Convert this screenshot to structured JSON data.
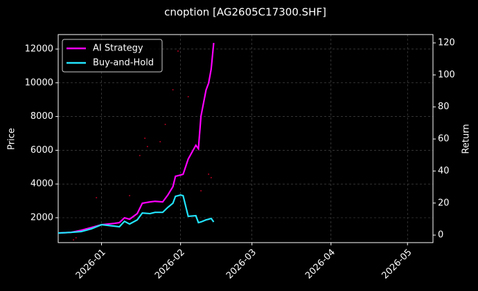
{
  "chart_data": {
    "type": "line",
    "title": "cnoption [AG2605C17300.SHF]",
    "ylabel": "Price",
    "y2label": "Return",
    "x": [
      "2025-12-15",
      "2025-12-20",
      "2025-12-24",
      "2025-12-28",
      "2026-01-01",
      "2026-01-06",
      "2026-01-08",
      "2026-01-10",
      "2026-01-12",
      "2026-01-15",
      "2026-01-17",
      "2026-01-20",
      "2026-01-22",
      "2026-01-25",
      "2026-01-27",
      "2026-01-29",
      "2026-01-30",
      "2026-02-01",
      "2026-02-02",
      "2026-02-04",
      "2026-02-07",
      "2026-02-08",
      "2026-02-09",
      "2026-02-11",
      "2026-02-12",
      "2026-02-13",
      "2026-02-14"
    ],
    "series": [
      {
        "name": "AI Strategy",
        "color": "#ff00ff",
        "axis": "y2",
        "values": [
          1.3,
          1.7,
          3.0,
          4.7,
          6.5,
          7.3,
          7.8,
          10.8,
          9.9,
          13.4,
          19.9,
          20.7,
          21.1,
          20.7,
          25.0,
          30.2,
          36.7,
          37.5,
          38.0,
          47.5,
          56.1,
          53.9,
          74.2,
          90.6,
          94.9,
          103.6,
          120.0
        ]
      },
      {
        "name": "Buy-and-Hold",
        "color": "#22e5ff",
        "axis": "y2",
        "values": [
          1.3,
          1.7,
          2.2,
          3.9,
          6.5,
          5.6,
          5.2,
          8.6,
          6.9,
          9.5,
          13.8,
          13.4,
          14.2,
          14.2,
          17.3,
          19.9,
          24.2,
          25.0,
          24.6,
          11.7,
          12.1,
          7.8,
          8.2,
          9.5,
          9.9,
          10.4,
          8.2
        ]
      }
    ],
    "scatter": {
      "color": "#b00020",
      "x": [
        "2025-12-21",
        "2025-12-22",
        "2025-12-30",
        "2026-01-12",
        "2026-01-16",
        "2026-01-18",
        "2026-01-19",
        "2026-01-24",
        "2026-01-26",
        "2026-01-29",
        "2026-01-31",
        "2026-02-04",
        "2026-02-09",
        "2026-02-12",
        "2026-02-13"
      ],
      "values": [
        688,
        811,
        3189,
        3312,
        5690,
        6715,
        6223,
        6510,
        7535,
        9585,
        11881,
        9175,
        3599,
        4583,
        4378
      ]
    },
    "xlim": [
      "2025-12-15",
      "2026-05-11"
    ],
    "xticks": [
      {
        "value": "2026-01-01",
        "label": "2026-01"
      },
      {
        "value": "2026-02-01",
        "label": "2026-02"
      },
      {
        "value": "2026-03-01",
        "label": "2026-03"
      },
      {
        "value": "2026-04-01",
        "label": "2026-04"
      },
      {
        "value": "2026-05-01",
        "label": "2026-05"
      }
    ],
    "ylim": [
      525,
      12860
    ],
    "yticks": [
      2000,
      4000,
      6000,
      8000,
      10000,
      12000
    ],
    "y2lim": [
      -4.7,
      125.2
    ],
    "y2ticks": [
      0,
      20,
      40,
      60,
      80,
      100,
      120
    ],
    "grid": true,
    "legend": "upper left"
  }
}
